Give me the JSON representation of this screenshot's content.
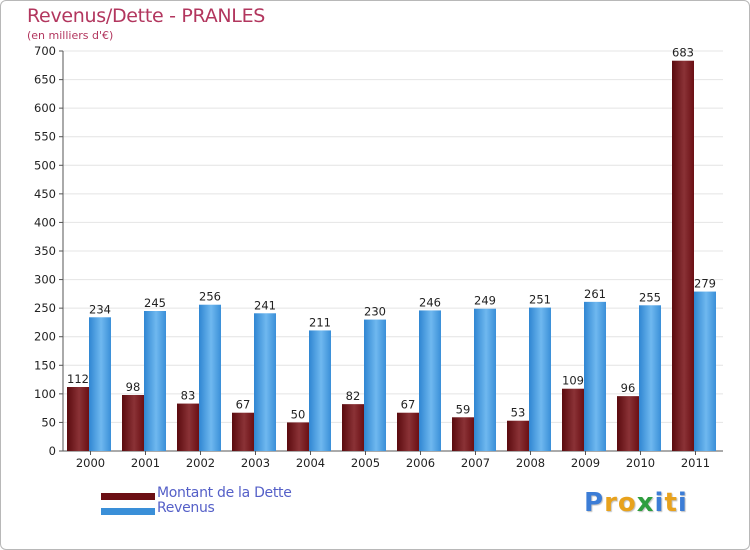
{
  "chart_data": {
    "type": "bar",
    "title": "Revenus/Dette - PRANLES",
    "subtitle": "(en milliers d'€)",
    "categories": [
      "2000",
      "2001",
      "2002",
      "2003",
      "2004",
      "2005",
      "2006",
      "2007",
      "2008",
      "2009",
      "2010",
      "2011"
    ],
    "series": [
      {
        "name": "Montant de la Dette",
        "values": [
          112,
          98,
          83,
          67,
          50,
          82,
          67,
          59,
          53,
          109,
          96,
          683
        ]
      },
      {
        "name": "Revenus",
        "values": [
          234,
          245,
          256,
          241,
          211,
          230,
          246,
          249,
          251,
          261,
          255,
          279
        ]
      }
    ],
    "ylim": [
      0,
      700
    ],
    "yticks": [
      0,
      50,
      100,
      150,
      200,
      250,
      300,
      350,
      400,
      450,
      500,
      550,
      600,
      650,
      700
    ],
    "grid": true,
    "legend_position": "bottom-left",
    "colors": {
      "dette": "#6b0f14",
      "dette_light": "#8e3a3e",
      "revenus": "#3a8fd8",
      "revenus_light": "#6cb6ee",
      "title": "#b2365e",
      "legend_text": "#5560c8",
      "grid": "#e4e4e4"
    }
  },
  "logo": {
    "text": "Proxiti",
    "letters": [
      "P",
      "r",
      "o",
      "x",
      "i",
      "t",
      "i"
    ],
    "colors": [
      "#3c7dd6",
      "#e8a21c",
      "#e8a21c",
      "#2e9e3e",
      "#3c7dd6",
      "#e8a21c",
      "#3c7dd6"
    ]
  }
}
